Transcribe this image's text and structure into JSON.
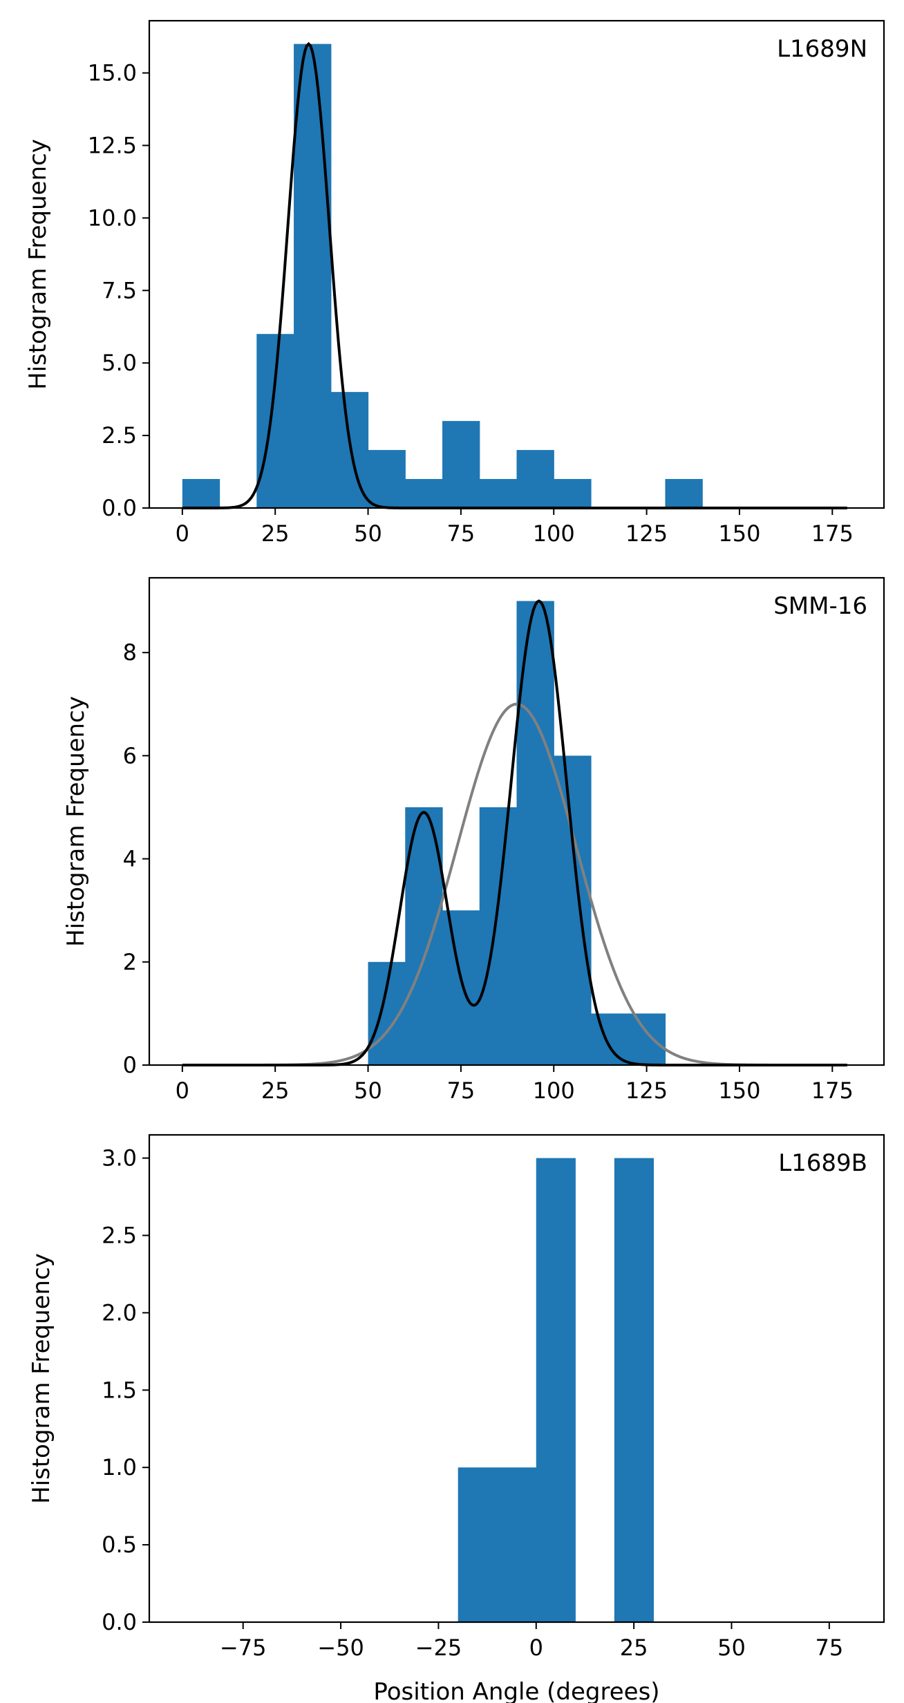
{
  "chart_data": [
    {
      "type": "histogram",
      "panel_label": "L1689N",
      "ylabel": "Histogram Frequency",
      "xlabel": "",
      "xlim": [
        -8.9,
        188.9
      ],
      "ylim": [
        0,
        16.8
      ],
      "xticks": [
        0,
        25,
        50,
        75,
        100,
        125,
        150,
        175
      ],
      "yticks": [
        0.0,
        2.5,
        5.0,
        7.5,
        10.0,
        12.5,
        15.0
      ],
      "ytick_labels": [
        "0.0",
        "2.5",
        "5.0",
        "7.5",
        "10.0",
        "12.5",
        "15.0"
      ],
      "bins": [
        0,
        10,
        20,
        30,
        40,
        50,
        60,
        70,
        80,
        90,
        100,
        110,
        120,
        130,
        140
      ],
      "counts": [
        1,
        0,
        6,
        16,
        4,
        2,
        1,
        3,
        1,
        2,
        1,
        0,
        0,
        1
      ],
      "fits": [
        {
          "name": "gaussian fit",
          "color": "#000000",
          "components": [
            {
              "amp": 16.0,
              "mu": 34,
              "sigma": 5.6
            }
          ]
        }
      ]
    },
    {
      "type": "histogram",
      "panel_label": "SMM-16",
      "ylabel": "Histogram Frequency",
      "xlabel": "",
      "xlim": [
        -8.9,
        188.9
      ],
      "ylim": [
        0,
        9.45
      ],
      "xticks": [
        0,
        25,
        50,
        75,
        100,
        125,
        150,
        175
      ],
      "yticks": [
        0,
        2,
        4,
        6,
        8
      ],
      "ytick_labels": [
        "0",
        "2",
        "4",
        "6",
        "8"
      ],
      "bins": [
        50,
        60,
        70,
        80,
        90,
        100,
        110,
        120,
        130
      ],
      "counts": [
        2,
        5,
        3,
        5,
        9,
        6,
        1,
        1
      ],
      "fits": [
        {
          "name": "single gaussian fit",
          "color": "#808080",
          "components": [
            {
              "amp": 7.0,
              "mu": 90,
              "sigma": 16
            }
          ]
        },
        {
          "name": "double gaussian fit",
          "color": "#000000",
          "components": [
            {
              "amp": 4.9,
              "mu": 65,
              "sigma": 6.5
            },
            {
              "amp": 9.0,
              "mu": 96,
              "sigma": 7.5
            }
          ]
        }
      ]
    },
    {
      "type": "histogram",
      "panel_label": "L1689B",
      "ylabel": "Histogram Frequency",
      "xlabel": "Position Angle (degrees)",
      "xlim": [
        -99,
        89
      ],
      "ylim": [
        0,
        3.15
      ],
      "xticks": [
        -75,
        -50,
        -25,
        0,
        25,
        50,
        75
      ],
      "xtick_labels": [
        "−75",
        "−50",
        "−25",
        "0",
        "25",
        "50",
        "75"
      ],
      "yticks": [
        0.0,
        0.5,
        1.0,
        1.5,
        2.0,
        2.5,
        3.0
      ],
      "ytick_labels": [
        "0.0",
        "0.5",
        "1.0",
        "1.5",
        "2.0",
        "2.5",
        "3.0"
      ],
      "bins": [
        -20,
        -10,
        0,
        10,
        20,
        30
      ],
      "counts": [
        1,
        1,
        3,
        0,
        3
      ],
      "fits": []
    }
  ],
  "colors": {
    "bar": "#1f77b4",
    "axis": "#000000"
  }
}
